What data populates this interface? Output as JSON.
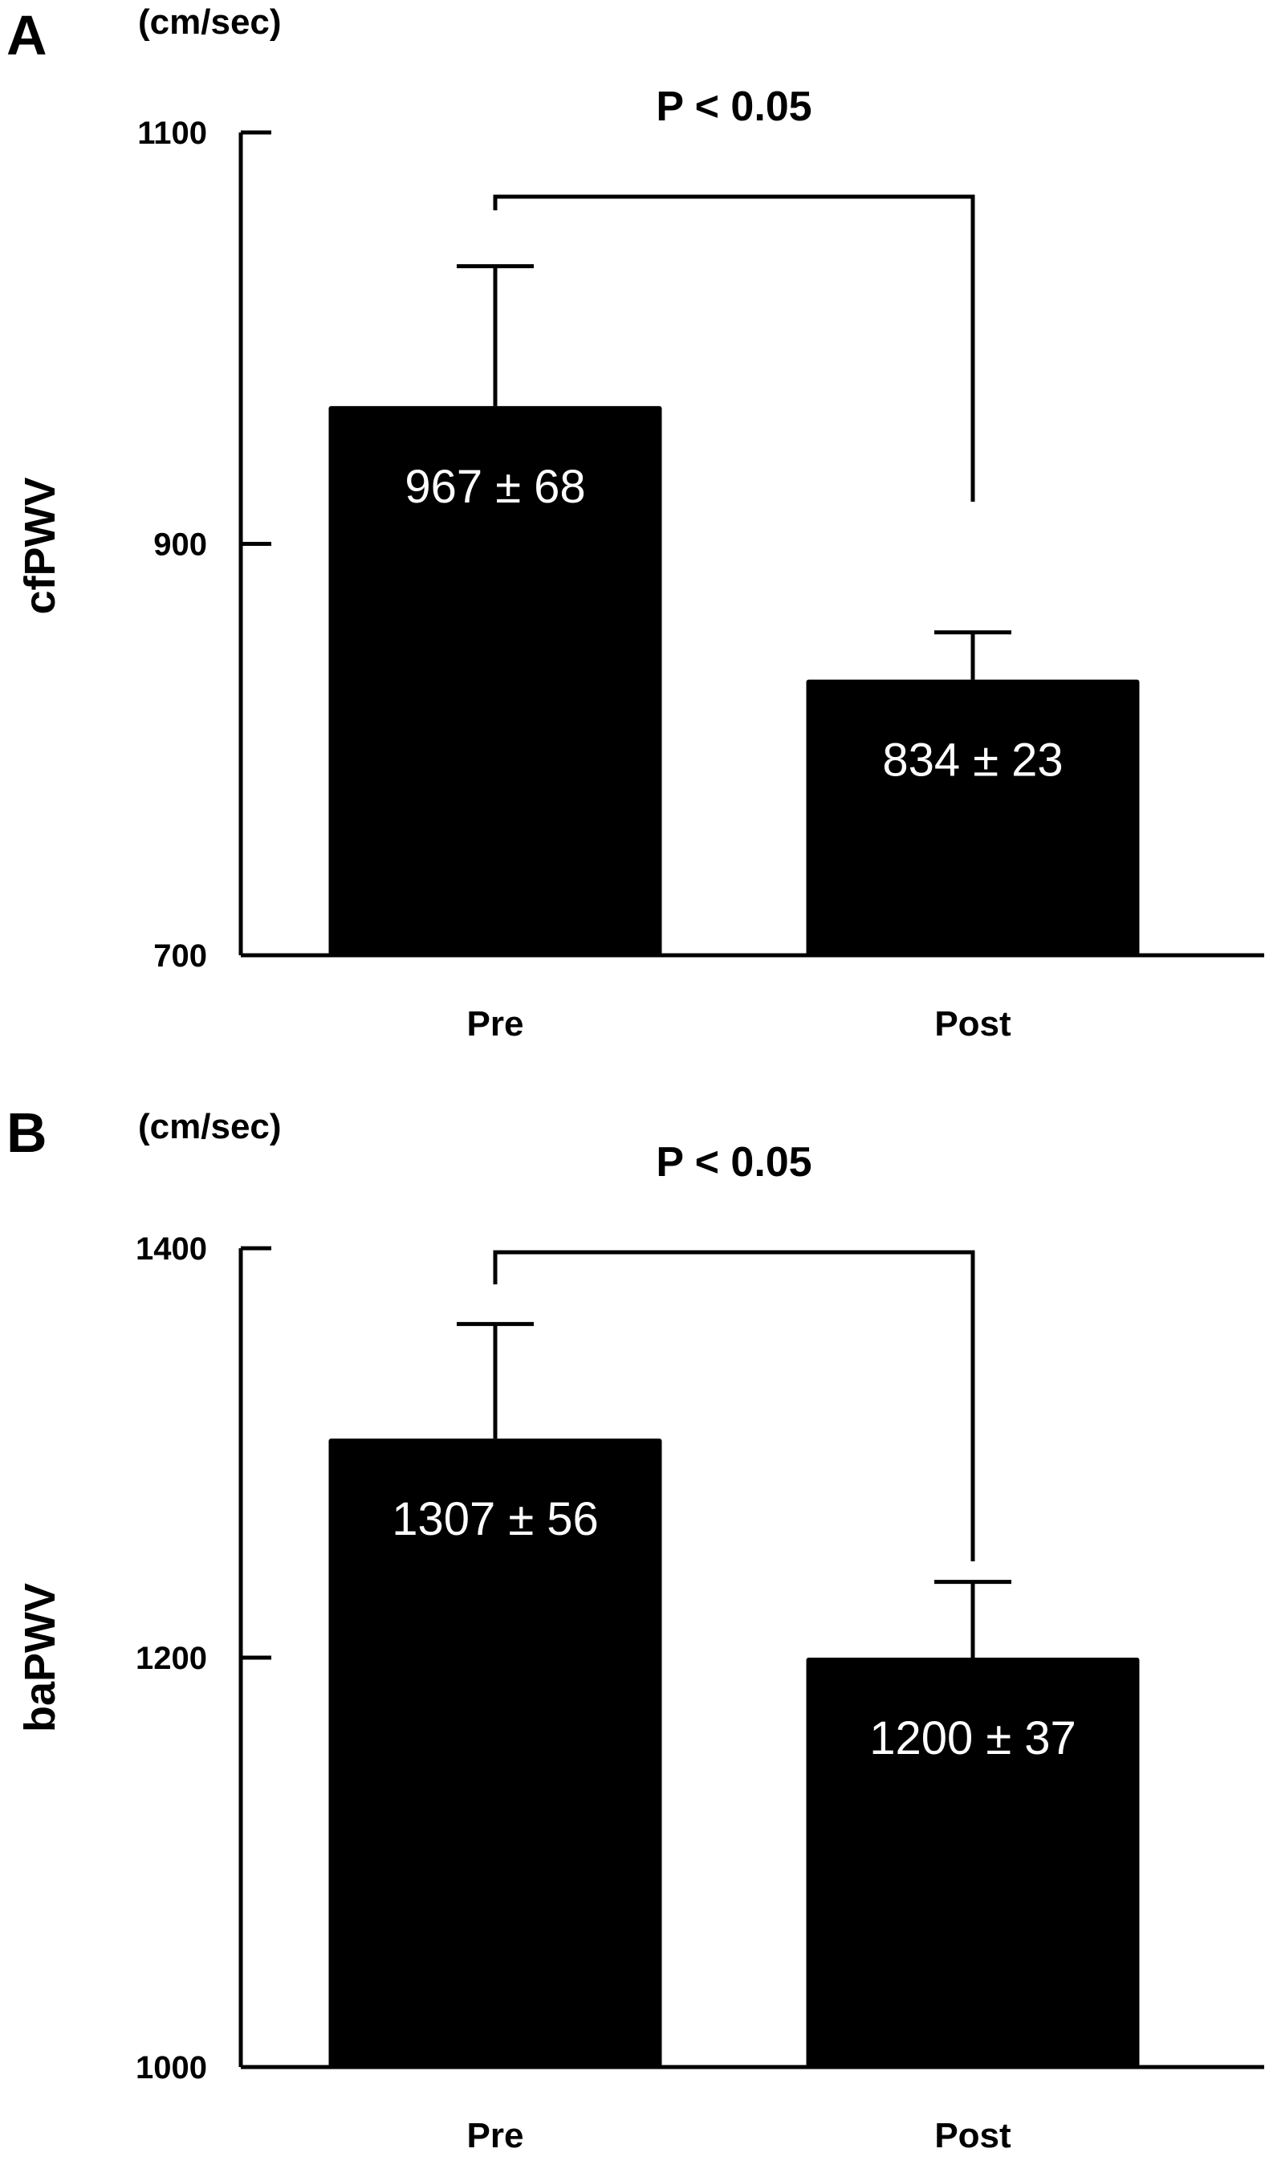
{
  "chart_data": [
    {
      "type": "bar",
      "panel": "A",
      "unit": "(cm/sec)",
      "ylabel": "cfPWV",
      "ylim": [
        700,
        1100
      ],
      "yticks": [
        700,
        900,
        1100
      ],
      "categories": [
        "Pre",
        "Post"
      ],
      "values": [
        967,
        834
      ],
      "errors": [
        68,
        23
      ],
      "data_labels": [
        "967 ± 68",
        "834 ± 23"
      ],
      "significance": "P < 0.05",
      "color": "#000000"
    },
    {
      "type": "bar",
      "panel": "B",
      "unit": "(cm/sec)",
      "ylabel": "baPWV",
      "ylim": [
        1000,
        1400
      ],
      "yticks": [
        1000,
        1200,
        1400
      ],
      "categories": [
        "Pre",
        "Post"
      ],
      "values": [
        1307,
        1200
      ],
      "errors": [
        56,
        37
      ],
      "data_labels": [
        "1307 ± 56",
        "1200 ± 37"
      ],
      "significance": "P < 0.05",
      "color": "#000000"
    }
  ]
}
